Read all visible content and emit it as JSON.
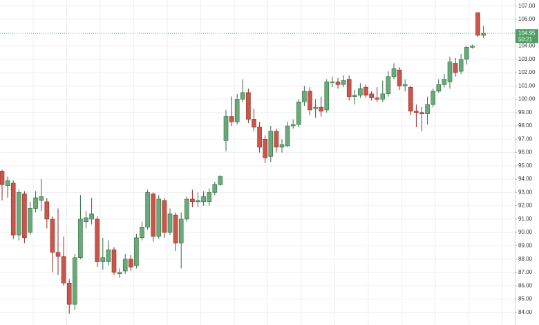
{
  "chart_data": {
    "type": "candlestick",
    "up_color": "#6aa97a",
    "down_color": "#c9554b",
    "grid": true,
    "ylim": [
      83.05,
      107.45
    ],
    "yticks": [
      {
        "value": 84,
        "label": "84.00"
      },
      {
        "value": 85,
        "label": "85.00"
      },
      {
        "value": 86,
        "label": "86.00"
      },
      {
        "value": 87,
        "label": "87.00"
      },
      {
        "value": 88,
        "label": "88.00"
      },
      {
        "value": 89,
        "label": "89.00"
      },
      {
        "value": 90,
        "label": "90.00"
      },
      {
        "value": 91,
        "label": "91.00"
      },
      {
        "value": 92,
        "label": "92.00"
      },
      {
        "value": 93,
        "label": "93.00"
      },
      {
        "value": 94,
        "label": "94.00"
      },
      {
        "value": 95,
        "label": "95.00"
      },
      {
        "value": 96,
        "label": "96.00"
      },
      {
        "value": 97,
        "label": "97.00"
      },
      {
        "value": 98,
        "label": "98.00"
      },
      {
        "value": 99,
        "label": "99.00"
      },
      {
        "value": 100,
        "label": "100.00"
      },
      {
        "value": 101,
        "label": "101.00"
      },
      {
        "value": 102,
        "label": "102.00"
      },
      {
        "value": 103,
        "label": "103.00"
      },
      {
        "value": 104,
        "label": "104.00"
      },
      {
        "value": 106,
        "label": "106.00"
      },
      {
        "value": 107,
        "label": "107.00"
      }
    ],
    "last_price": 104.95,
    "countdown": "50:21",
    "open": [
      94.6,
      93.5,
      93.7,
      89.8,
      92.9,
      90.0,
      91.8,
      92.4,
      92.3,
      91.0,
      88.5,
      88.2,
      86.2,
      84.6,
      88.1,
      90.8,
      91.0,
      91.0,
      87.8,
      87.8,
      88.7,
      86.9,
      87.1,
      88.0,
      87.5,
      89.6,
      90.4,
      92.9,
      89.7,
      92.4,
      90.0,
      91.3,
      89.2,
      91.0,
      92.5,
      92.3,
      92.3,
      92.3,
      93.0,
      93.6,
      96.9,
      98.7,
      98.3,
      100.0,
      100.5,
      98.5,
      97.9,
      97.0,
      95.7,
      97.6,
      96.4,
      96.5,
      98.0,
      98.1,
      99.8,
      100.6,
      99.3,
      99.4,
      99.2,
      101.3,
      101.3,
      101.1,
      101.5,
      100.2,
      100.3,
      100.9,
      100.4,
      100.1,
      100.0,
      100.4,
      101.7,
      102.2,
      101.0,
      100.9,
      99.1,
      99.0,
      98.9,
      99.6,
      100.6,
      101.1,
      101.3,
      102.7,
      102.1,
      103.0,
      103.9,
      106.5,
      104.8
    ],
    "high": [
      94.7,
      94.2,
      93.9,
      93.2,
      93.1,
      92.3,
      93.1,
      94.0,
      92.6,
      91.2,
      91.8,
      89.7,
      86.5,
      88.4,
      92.8,
      91.6,
      92.6,
      91.2,
      89.6,
      89.4,
      88.9,
      87.3,
      88.4,
      88.3,
      89.9,
      90.8,
      93.2,
      93.0,
      92.8,
      92.6,
      91.8,
      91.5,
      91.5,
      92.7,
      93.2,
      93.0,
      93.1,
      93.3,
      93.8,
      94.3,
      99.2,
      100.2,
      100.4,
      101.5,
      100.8,
      99.3,
      98.3,
      97.3,
      98.0,
      97.8,
      97.0,
      98.3,
      98.5,
      100.0,
      101.0,
      100.9,
      100.0,
      100.2,
      101.5,
      101.7,
      101.6,
      101.8,
      101.8,
      100.7,
      101.2,
      101.1,
      100.6,
      100.9,
      101.4,
      102.1,
      102.7,
      102.4,
      101.5,
      101.0,
      99.6,
      99.4,
      100.2,
      100.8,
      101.5,
      101.9,
      103.2,
      103.1,
      103.4,
      104.0,
      104.1,
      106.5,
      105.5
    ],
    "low": [
      92.4,
      92.6,
      89.5,
      89.4,
      89.2,
      89.8,
      91.5,
      91.6,
      90.3,
      87.0,
      86.8,
      86.0,
      83.9,
      84.2,
      88.0,
      90.3,
      90.6,
      87.4,
      87.2,
      87.5,
      86.8,
      86.6,
      86.9,
      87.1,
      87.3,
      89.4,
      90.2,
      89.3,
      89.5,
      89.6,
      89.8,
      88.6,
      87.3,
      90.8,
      91.9,
      91.9,
      92.0,
      92.0,
      92.8,
      93.5,
      96.1,
      98.0,
      98.1,
      99.8,
      98.2,
      97.6,
      96.0,
      95.2,
      95.3,
      96.0,
      96.0,
      96.4,
      97.8,
      97.9,
      99.5,
      98.8,
      98.6,
      98.7,
      99.0,
      100.9,
      100.8,
      100.9,
      99.9,
      99.6,
      100.1,
      100.1,
      99.9,
      99.8,
      99.8,
      100.2,
      101.5,
      100.7,
      100.6,
      98.8,
      97.9,
      97.6,
      98.1,
      99.4,
      100.5,
      100.9,
      100.8,
      101.7,
      101.9,
      102.6,
      103.8,
      104.7,
      104.6
    ],
    "close": [
      93.6,
      93.9,
      89.8,
      93.0,
      89.6,
      91.8,
      92.6,
      92.7,
      91.0,
      88.5,
      88.2,
      86.2,
      84.6,
      88.1,
      91.0,
      91.1,
      91.4,
      87.8,
      88.1,
      88.7,
      87.0,
      87.0,
      88.0,
      87.4,
      89.6,
      90.4,
      93.0,
      89.7,
      92.5,
      90.0,
      91.4,
      89.2,
      91.0,
      92.5,
      92.3,
      92.4,
      92.7,
      93.0,
      93.6,
      94.2,
      98.7,
      98.3,
      100.0,
      100.5,
      98.5,
      97.9,
      96.4,
      95.6,
      97.6,
      96.4,
      96.6,
      98.0,
      98.1,
      99.8,
      100.6,
      99.2,
      99.4,
      99.1,
      101.3,
      101.3,
      101.1,
      101.4,
      100.2,
      100.3,
      100.8,
      100.3,
      100.1,
      100.0,
      100.4,
      101.7,
      102.3,
      101.0,
      101.1,
      99.1,
      99.0,
      98.9,
      99.6,
      100.6,
      101.1,
      101.5,
      102.8,
      102.0,
      103.0,
      103.9,
      104.0,
      104.8,
      104.95
    ]
  }
}
